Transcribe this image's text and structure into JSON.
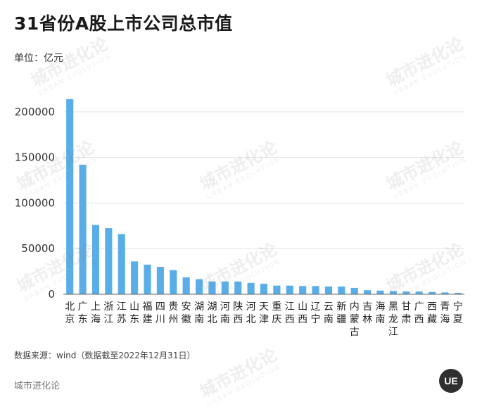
{
  "header": {
    "title": "31省份A股上市公司总市值",
    "unit": "单位：亿元"
  },
  "footer": {
    "source": "数据来源：wind（数据截至2022年12月31日）",
    "brand": "城市进化论",
    "logo_text": "UE"
  },
  "watermark": {
    "main": "城市进化论",
    "sub": "URBAN EVOLUTION"
  },
  "colors": {
    "bar": "#5aaee8",
    "grid": "#e3e3e3",
    "axis": "#666666"
  },
  "chart_data": {
    "type": "bar",
    "title": "31省份A股上市公司总市值",
    "ylabel": "单位：亿元",
    "xlabel": "",
    "ylim": [
      0,
      230000
    ],
    "yticks": [
      0,
      50000,
      100000,
      150000,
      200000
    ],
    "grid": true,
    "categories": [
      "北京",
      "广东",
      "上海",
      "浙江",
      "江苏",
      "山东",
      "福建",
      "四川",
      "贵州",
      "安徽",
      "湖南",
      "湖北",
      "河南",
      "陕西",
      "河北",
      "天津",
      "重庆",
      "江西",
      "山西",
      "辽宁",
      "云南",
      "新疆",
      "内蒙古",
      "吉林",
      "海南",
      "黑龙江",
      "甘肃",
      "广西",
      "西藏",
      "青海",
      "宁夏"
    ],
    "values": [
      214000,
      142000,
      76000,
      72500,
      66000,
      36000,
      32500,
      30000,
      26500,
      18500,
      16500,
      14000,
      14000,
      14000,
      12500,
      11500,
      9500,
      9500,
      9000,
      9000,
      8500,
      8500,
      7000,
      4500,
      4000,
      3500,
      3000,
      3000,
      2500,
      2000,
      1500
    ]
  }
}
